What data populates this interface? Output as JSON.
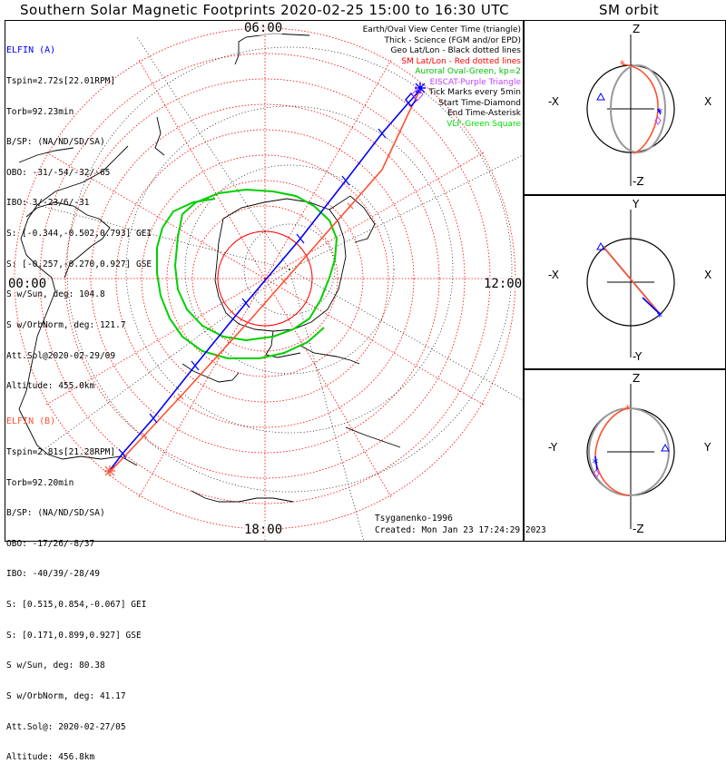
{
  "title": "Southern Solar Magnetic Footprints 2020-02-25 15:00 to 16:30 UTC",
  "sm_orbit_title": "SM orbit",
  "map_ticks": {
    "top": "06:00",
    "left": "00:00",
    "right": "12:00",
    "bottom": "18:00"
  },
  "legend": [
    {
      "text": "Earth/Oval View Center Time (triangle)",
      "color": "#000000"
    },
    {
      "text": "Thick - Science (FGM and/or EPD)",
      "color": "#000000"
    },
    {
      "text": "Geo Lat/Lon - Black dotted lines",
      "color": "#000000"
    },
    {
      "text": "SM Lat/Lon - Red dotted lines",
      "color": "#ff0000"
    },
    {
      "text": "Auroral Oval-Green, kp=2",
      "color": "#00c000"
    },
    {
      "text": "EISCAT-Purple Triangle",
      "color": "#c040ff"
    },
    {
      "text": "Tick Marks every 5min",
      "color": "#000000"
    },
    {
      "text": "Start Time-Diamond",
      "color": "#000000"
    },
    {
      "text": "End Time-Asterisk",
      "color": "#000000"
    },
    {
      "text": "VLF-Green Square",
      "color": "#00e000"
    }
  ],
  "elfin_a": {
    "header": "ELFIN (A)",
    "color": "#0000ff",
    "lines": [
      "Tspin=2.72s[22.01RPM]",
      "Torb=92.23min",
      "B/SP: (NA/ND/SD/SA)",
      "OBO: -31/-54/-32/-65",
      "IBO: 3/-23/6/-31",
      "S: [-0.344,-0.502,0.793] GEI",
      "S: [-0.257,-0.270,0.927] GSE",
      "S w/Sun, deg: 104.8",
      "S w/OrbNorm, deg: 121.7",
      "Att.Sol@2020-02-29/09",
      "Altitude: 455.0km"
    ]
  },
  "elfin_b": {
    "header": "ELFIN (B)",
    "color": "#ff5030",
    "lines": [
      "Tspin=2.81s[21.28RPM]",
      "Torb=92.20min",
      "B/SP: (NA/ND/SD/SA)",
      "OBO: -17/26/-8/37",
      "IBO: -40/39/-28/49",
      "S: [0.515,0.854,-0.067] GEI",
      "S: [0.171,0.899,0.927] GSE",
      "S w/Sun, deg: 80.38",
      "S w/OrbNorm, deg: 41.17",
      "Att.Sol@: 2020-02-27/05",
      "Altitude: 456.8km"
    ]
  },
  "model_note": "Tsyganenko-1996",
  "created_note": "Created: Mon Jan 23 17:24:29 2023",
  "sm_panels": [
    {
      "top": "Z",
      "bottom": "-Z",
      "left": "-X",
      "right": "X"
    },
    {
      "top": "Y",
      "bottom": "-Y",
      "left": "-X",
      "right": "X"
    },
    {
      "top": "Z",
      "bottom": "-Z",
      "left": "-Y",
      "right": "Y"
    }
  ]
}
